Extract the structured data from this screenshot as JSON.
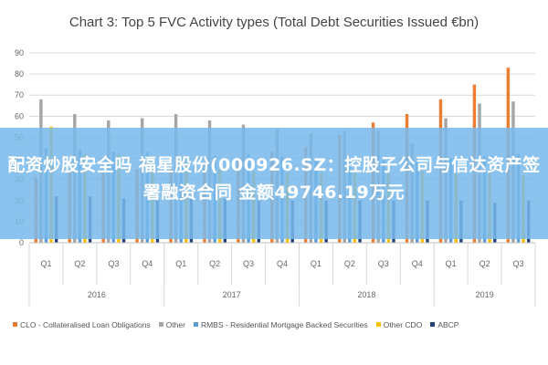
{
  "chart_data": {
    "type": "bar",
    "title": "Chart 3: Top 5 FVC Activity types (Total Debt Securities Issued €bn)",
    "ylim": [
      0,
      90
    ],
    "yticks": [
      0,
      10,
      20,
      30,
      40,
      50,
      60,
      70,
      80,
      90
    ],
    "grid": true,
    "legend_position": "bottom",
    "categories": [
      "Q1",
      "Q2",
      "Q3",
      "Q4",
      "Q1",
      "Q2",
      "Q3",
      "Q4",
      "Q1",
      "Q2",
      "Q3",
      "Q4",
      "Q1",
      "Q2",
      "Q3"
    ],
    "groups": [
      {
        "label": "2016",
        "categories": [
          "Q1",
          "Q2",
          "Q3",
          "Q4"
        ]
      },
      {
        "label": "2017",
        "categories": [
          "Q1",
          "Q2",
          "Q3",
          "Q4"
        ]
      },
      {
        "label": "2018",
        "categories": [
          "Q1",
          "Q2",
          "Q3",
          "Q4"
        ]
      },
      {
        "label": "2019",
        "categories": [
          "Q1",
          "Q2",
          "Q3"
        ]
      }
    ],
    "series": [
      {
        "name": "CLO - Collateralised Loan Obligations",
        "color": "#ED7D31",
        "values": [
          31,
          34,
          34,
          35,
          36,
          38,
          39,
          43,
          45,
          51,
          57,
          61,
          68,
          75,
          83
        ]
      },
      {
        "name": "Other",
        "color": "#A5A5A5",
        "values": [
          68,
          61,
          58,
          59,
          61,
          58,
          56,
          54,
          52,
          53,
          53,
          47,
          59,
          66,
          67
        ]
      },
      {
        "name": "RMBS - Residential Mortgage Backed Securities",
        "color": "#5B9BD5",
        "values": [
          45,
          44,
          43,
          43,
          41,
          41,
          42,
          41,
          40,
          39,
          39,
          39,
          40,
          41,
          42
        ]
      },
      {
        "name": "Other CDO",
        "color": "#FFC000",
        "values": [
          55,
          42,
          42,
          40,
          38,
          35,
          34,
          33,
          33,
          33,
          33,
          34,
          33,
          33,
          32
        ]
      },
      {
        "name": "ABCP",
        "color": "#264478",
        "values": [
          22,
          22,
          21,
          21,
          21,
          21,
          20,
          20,
          20,
          20,
          20,
          20,
          20,
          19,
          20
        ]
      }
    ]
  },
  "overlay": {
    "text": "配资炒股安全吗 福星股份(000926.SZ：控股子公司与信达资产签署融资合同  金额49746.19万元"
  }
}
